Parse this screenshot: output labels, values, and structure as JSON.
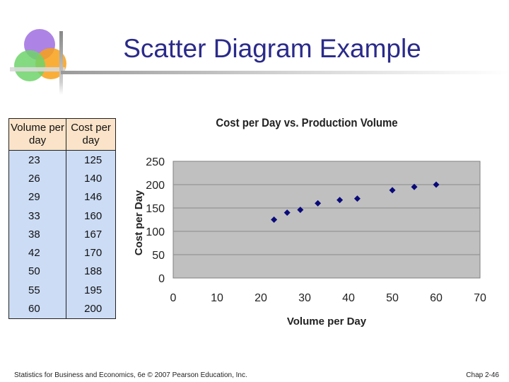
{
  "slide": {
    "title": "Scatter Diagram Example",
    "footer_left": "Statistics for Business and Economics, 6e © 2007 Pearson Education, Inc.",
    "footer_right": "Chap 2-46"
  },
  "table": {
    "headers": [
      "Volume per day",
      "Cost per day"
    ],
    "rows": [
      [
        "23",
        "125"
      ],
      [
        "26",
        "140"
      ],
      [
        "29",
        "146"
      ],
      [
        "33",
        "160"
      ],
      [
        "38",
        "167"
      ],
      [
        "42",
        "170"
      ],
      [
        "50",
        "188"
      ],
      [
        "55",
        "195"
      ],
      [
        "60",
        "200"
      ]
    ]
  },
  "colors": {
    "title": "#2a2a8a",
    "header_bg": "#fae3c8",
    "cell_bg": "#ccdcf5",
    "plot_bg": "#c0c0c0",
    "marker": "#0a0a7a"
  },
  "chart_data": {
    "type": "scatter",
    "title": "Cost per Day vs. Production Volume",
    "xlabel": "Volume per Day",
    "ylabel": "Cost per Day",
    "xlim": [
      0,
      70
    ],
    "ylim": [
      0,
      250
    ],
    "xticks": [
      0,
      10,
      20,
      30,
      40,
      50,
      60,
      70
    ],
    "yticks": [
      0,
      50,
      100,
      150,
      200,
      250
    ],
    "grid": "horizontal",
    "legend": "none",
    "series": [
      {
        "name": "Cost per day",
        "x": [
          23,
          26,
          29,
          33,
          38,
          42,
          50,
          55,
          60
        ],
        "y": [
          125,
          140,
          146,
          160,
          167,
          170,
          188,
          195,
          200
        ]
      }
    ]
  }
}
